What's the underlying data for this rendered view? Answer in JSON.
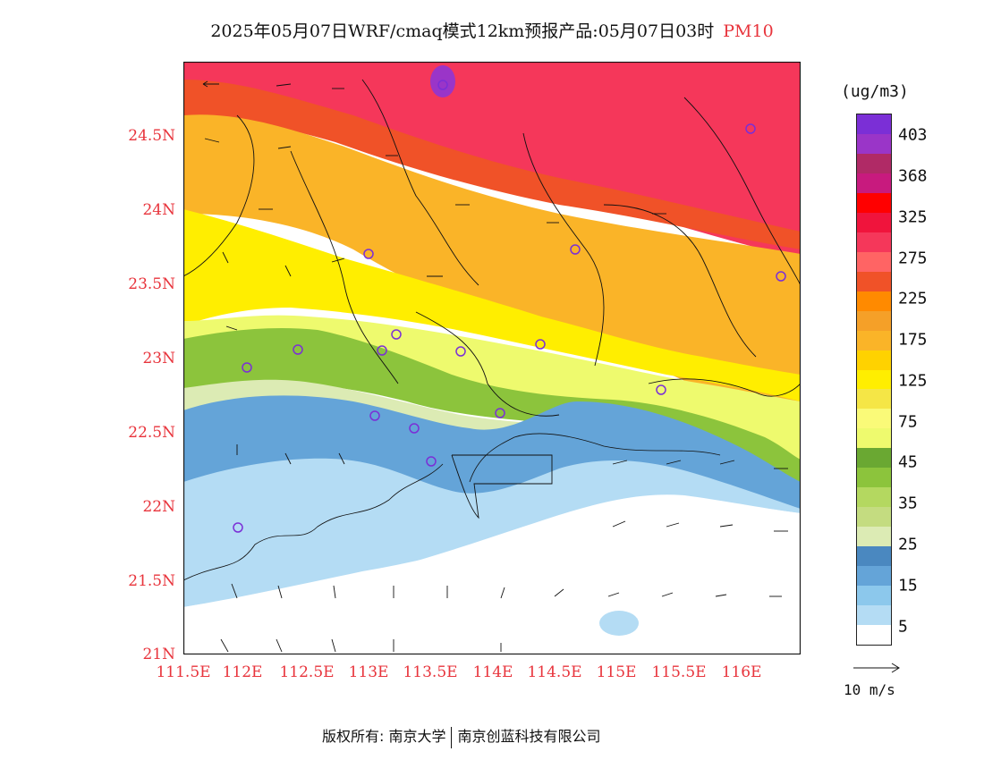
{
  "title": {
    "main": "2025年05月07日WRF/cmaq模式12km预报产品:05月07日03时",
    "variable": "PM10"
  },
  "axes": {
    "lat_labels": [
      "24.5N",
      "24N",
      "23.5N",
      "23N",
      "22.5N",
      "22N",
      "21.5N",
      "21N"
    ],
    "lon_labels": [
      "111.5E",
      "112E",
      "112.5E",
      "113E",
      "113.5E",
      "114E",
      "114.5E",
      "115E",
      "115.5E",
      "116E"
    ]
  },
  "legend": {
    "unit": "(ug/m3)",
    "labels": [
      "403",
      "368",
      "325",
      "275",
      "225",
      "175",
      "125",
      "75",
      "45",
      "35",
      "25",
      "15",
      "5"
    ],
    "colors": [
      "#7b2fd6",
      "#9a35c8",
      "#b02a66",
      "#c81a7e",
      "#ff0000",
      "#f0143c",
      "#f5375a",
      "#ff6464",
      "#f05228",
      "#ff8a00",
      "#f5a028",
      "#fab428",
      "#ffd200",
      "#ffee00",
      "#f5e646",
      "#fafa78",
      "#eefa6e",
      "#6aa832",
      "#8cc43c",
      "#b4d860",
      "#c4dc80",
      "#dcebb4",
      "#4a88c0",
      "#64a4d8",
      "#8cc8ec",
      "#b4dcf4",
      "#ffffff"
    ]
  },
  "wind_reference": {
    "label": "10  m/s"
  },
  "footer": {
    "rights": "版权所有: 南京大学",
    "company": "南京创蓝科技有限公司"
  }
}
